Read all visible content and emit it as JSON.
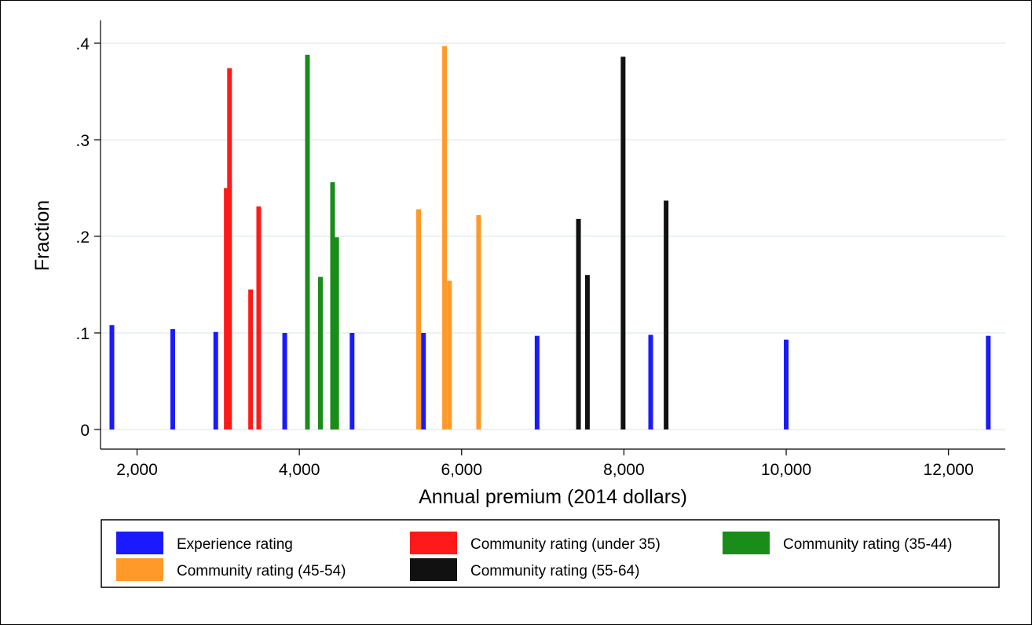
{
  "chart_data": {
    "type": "bar",
    "title": "",
    "xlabel": "Annual premium (2014 dollars)",
    "ylabel": "Fraction",
    "xlim": [
      1550,
      12700
    ],
    "ylim": [
      0,
      0.42
    ],
    "x_ticks": [
      2000,
      4000,
      6000,
      8000,
      10000,
      12000
    ],
    "x_tick_labels": [
      "2,000",
      "4,000",
      "6,000",
      "8,000",
      "10,000",
      "12,000"
    ],
    "y_ticks": [
      0,
      0.1,
      0.2,
      0.3,
      0.4
    ],
    "y_tick_labels": [
      "0",
      ".1",
      ".2",
      ".3",
      ".4"
    ],
    "grid": true,
    "legend_position": "bottom",
    "series": [
      {
        "name": "Experience rating",
        "color": "#1a1aff",
        "x": [
          1690,
          2440,
          2970,
          3820,
          4650,
          5530,
          6930,
          8330,
          10000,
          12490
        ],
        "values": [
          0.108,
          0.104,
          0.101,
          0.1,
          0.1,
          0.1,
          0.097,
          0.098,
          0.093,
          0.097
        ]
      },
      {
        "name": "Community rating (under 35)",
        "color": "#ff1a1a",
        "x": [
          3100,
          3140,
          3400,
          3500
        ],
        "values": [
          0.25,
          0.374,
          0.145,
          0.231
        ]
      },
      {
        "name": "Community rating (35-44)",
        "color": "#1a8c1a",
        "x": [
          4100,
          4260,
          4410,
          4460
        ],
        "values": [
          0.388,
          0.158,
          0.256,
          0.199
        ]
      },
      {
        "name": "Community rating (45-54)",
        "color": "#ff9a2a",
        "x": [
          5470,
          5790,
          5850,
          6210
        ],
        "values": [
          0.228,
          0.397,
          0.154,
          0.222
        ]
      },
      {
        "name": "Community rating (55-64)",
        "color": "#111111",
        "x": [
          7440,
          7550,
          7990,
          8520
        ],
        "values": [
          0.218,
          0.16,
          0.386,
          0.237
        ]
      }
    ]
  }
}
